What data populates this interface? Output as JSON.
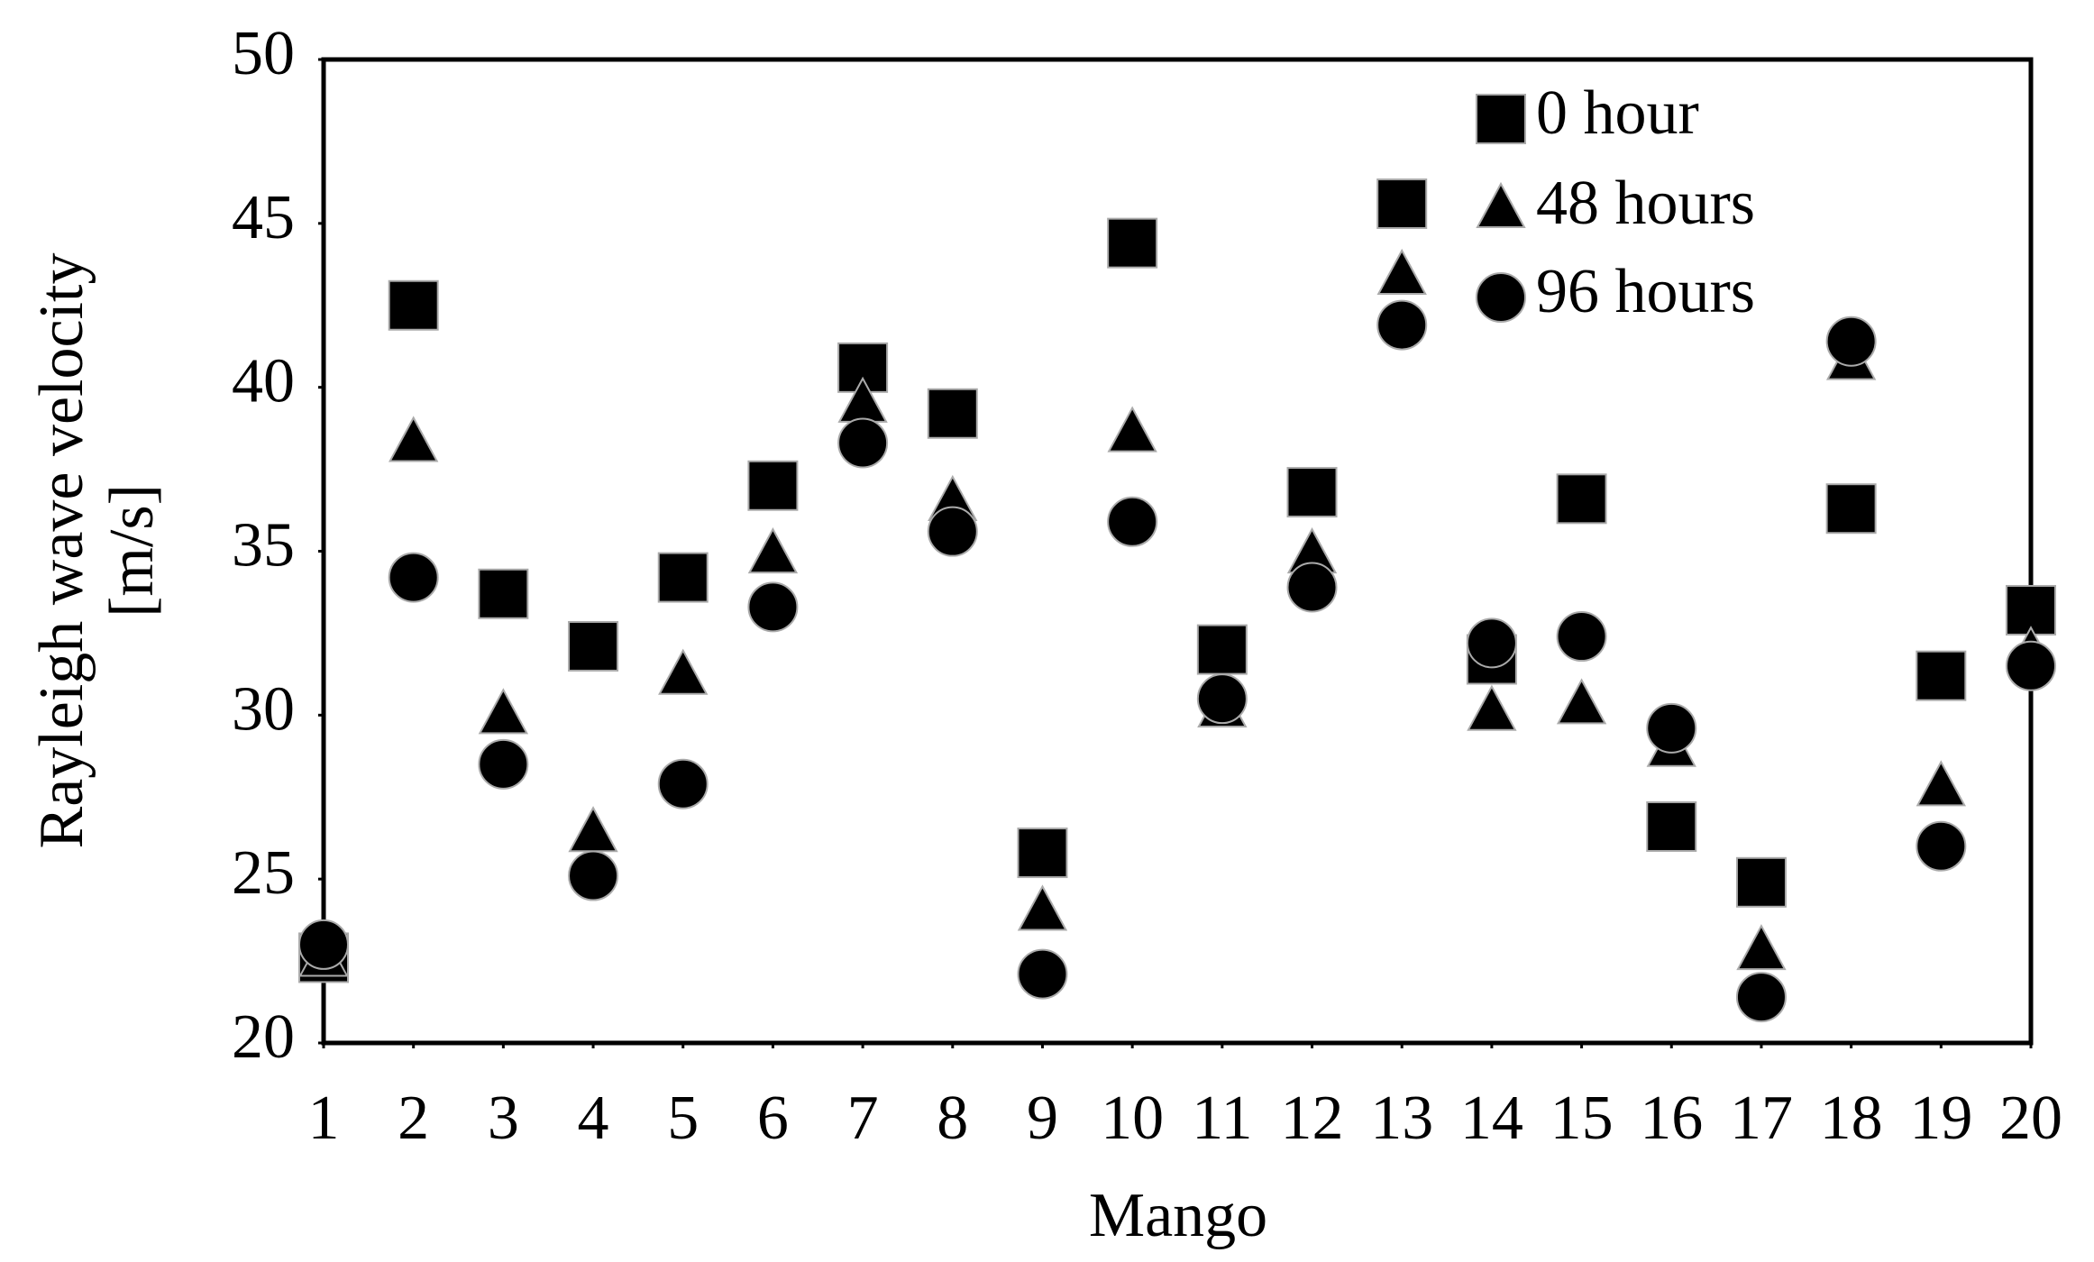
{
  "chart_data": {
    "type": "scatter",
    "x_label": "Mango",
    "y_label": [
      "Rayleigh wave velocity",
      "[m/s]"
    ],
    "x": [
      1,
      2,
      3,
      4,
      5,
      6,
      7,
      8,
      9,
      10,
      11,
      12,
      13,
      14,
      15,
      16,
      17,
      18,
      19,
      20
    ],
    "xlim": [
      1,
      20
    ],
    "xticks": [
      1,
      2,
      3,
      4,
      5,
      6,
      7,
      8,
      9,
      10,
      11,
      12,
      13,
      14,
      15,
      16,
      17,
      18,
      19,
      20
    ],
    "ylim": [
      20,
      50
    ],
    "yticks": [
      20,
      25,
      30,
      35,
      40,
      45,
      50
    ],
    "grid": false,
    "legend": "upper right",
    "series": [
      {
        "name": "0 hour",
        "color": "#000000",
        "marker": "square",
        "values": [
          22.6,
          42.5,
          33.7,
          32.1,
          34.2,
          37.0,
          40.6,
          39.2,
          25.8,
          44.4,
          32.0,
          36.8,
          45.6,
          31.7,
          36.6,
          26.6,
          24.9,
          36.3,
          31.2,
          33.2
        ]
      },
      {
        "name": "48 hours",
        "color": "#000000",
        "marker": "triangle",
        "values": [
          22.6,
          38.3,
          30.0,
          26.4,
          31.2,
          34.9,
          39.5,
          36.5,
          24.0,
          38.6,
          30.2,
          34.9,
          43.4,
          30.1,
          30.3,
          29.0,
          22.8,
          40.8,
          27.8,
          31.9
        ]
      },
      {
        "name": "96 hours",
        "color": "#000000",
        "marker": "circle",
        "values": [
          23.0,
          34.2,
          28.5,
          25.1,
          27.9,
          33.3,
          38.3,
          35.6,
          22.1,
          35.9,
          30.5,
          33.9,
          41.9,
          32.2,
          32.4,
          29.6,
          21.4,
          41.4,
          26.0,
          31.5
        ]
      }
    ]
  }
}
